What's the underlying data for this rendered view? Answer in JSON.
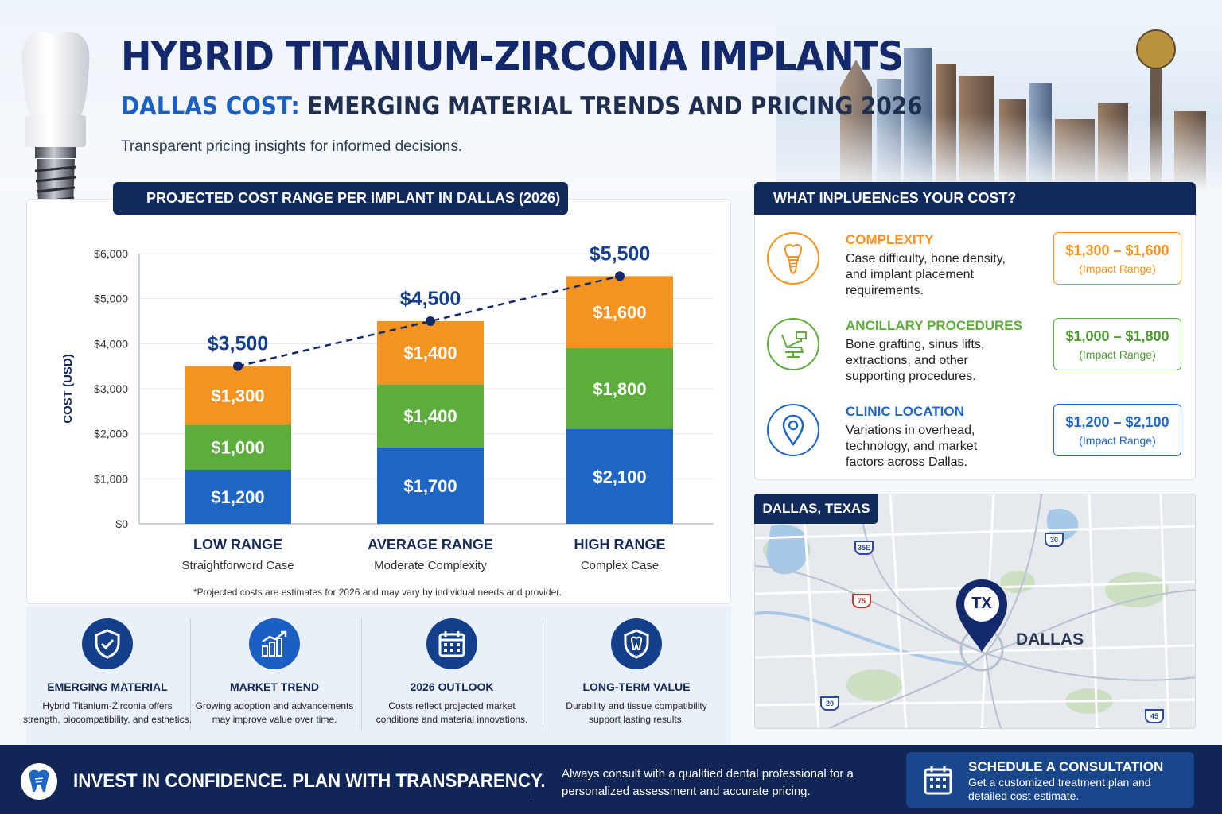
{
  "header": {
    "title": "HYBRID TITANIUM-ZIRCONIA IMPLANTS",
    "subtitle_part1": "DALLAS COST:",
    "subtitle_part2": " EMERGING MATERIAL TRENDS AND PRICING 2026",
    "tagline": "Transparent pricing insights for informed decisions."
  },
  "chart_panel": {
    "heading": "PROJECTED COST RANGE PER IMPLANT IN DALLAS (2026)",
    "footnote": "*Projected costs are estimates for 2026 and may vary by individual needs and provider."
  },
  "chart_data": {
    "type": "bar",
    "stacked": true,
    "ylabel": "COST (USD)",
    "ylim": [
      0,
      6000
    ],
    "yticks": [
      0,
      1000,
      2000,
      3000,
      4000,
      5000,
      6000
    ],
    "ytick_labels": [
      "$0",
      "$1,000",
      "$2,000",
      "$3,000",
      "$4,000",
      "$5,000",
      "$6,000"
    ],
    "categories": [
      "LOW RANGE",
      "AVERAGE RANGE",
      "HIGH RANGE"
    ],
    "category_sublabels": [
      "Straightforword Case",
      "Moderate Complexity",
      "Complex Case"
    ],
    "series": [
      {
        "values": [
          1200,
          1700,
          2100
        ],
        "labels": [
          "$1,200",
          "$1,700",
          "$2,100"
        ],
        "color": "#1f65c4"
      },
      {
        "values": [
          1000,
          1400,
          1800
        ],
        "labels": [
          "$1,000",
          "$1,400",
          "$1,800"
        ],
        "color": "#5cad3c"
      },
      {
        "values": [
          1300,
          1400,
          1600
        ],
        "labels": [
          "$1,300",
          "$1,400",
          "$1,600"
        ],
        "color": "#f4931f"
      }
    ],
    "totals": [
      3500,
      4500,
      5500
    ],
    "total_labels": [
      "$3,500",
      "$4,500",
      "$5,500"
    ],
    "trend_line": "dashed",
    "grid": true
  },
  "features": [
    {
      "title": "EMERGING MATERIAL",
      "text": "Hybrid Titanium-Zirconia offers strength, biocompatibility, and esthetics.",
      "icon": "shield-check-icon"
    },
    {
      "title": "MARKET TREND",
      "text": "Growing adoption and advancements may improve value over time.",
      "icon": "trend-chart-icon"
    },
    {
      "title": "2026 OUTLOOK",
      "text": "Costs reflect projected market conditions and material innovations.",
      "icon": "calendar-icon"
    },
    {
      "title": "LONG-TERM VALUE",
      "text": "Durability and tissue compatibility support lasting results.",
      "icon": "tooth-shield-icon"
    }
  ],
  "influences": {
    "heading": "WHAT INPLUEENᴄES YOUR COST?",
    "items": [
      {
        "title": "COMPLEXITY",
        "text": "Case difficulty, bone density, and implant placement requirements.",
        "range": "$1,300 – $1,600",
        "range_sub": "(Impact Range)",
        "color": "#f4931f",
        "icon": "implant-icon"
      },
      {
        "title": "ANCILLARY PROCEDURES",
        "text": "Bone grafting, sinus lifts, extractions, and other supporting procedures.",
        "range": "$1,000 – $1,800",
        "range_sub": "(Impact Range)",
        "color": "#5cad3c",
        "icon": "dental-chair-icon"
      },
      {
        "title": "CLINIC LOCATION",
        "text": "Variations in overhead, technology, and market factors across Dallas.",
        "range": "$1,200 – $2,100",
        "range_sub": "(Impact Range)",
        "color": "#1f65c4",
        "icon": "location-pin-icon"
      }
    ]
  },
  "map": {
    "label": "DALLAS, TEXAS",
    "pin_text": "TX",
    "city": "DALLAS",
    "shields": [
      "35E",
      "30",
      "75",
      "20",
      "45"
    ]
  },
  "footer": {
    "slogan": "INVEST IN CONFIDENCE. PLAN WITH TRANSPARENCY.",
    "note": "Always consult with a qualified dental professional for a personalized assessment and accurate pricing.",
    "cta_title": "SCHEDULE A CONSULTATION",
    "cta_text": "Get a customized treatment plan and detailed cost estimate."
  },
  "colors": {
    "navy": "#102a5c",
    "blue": "#1f65c4",
    "green": "#5cad3c",
    "orange": "#f4931f"
  }
}
